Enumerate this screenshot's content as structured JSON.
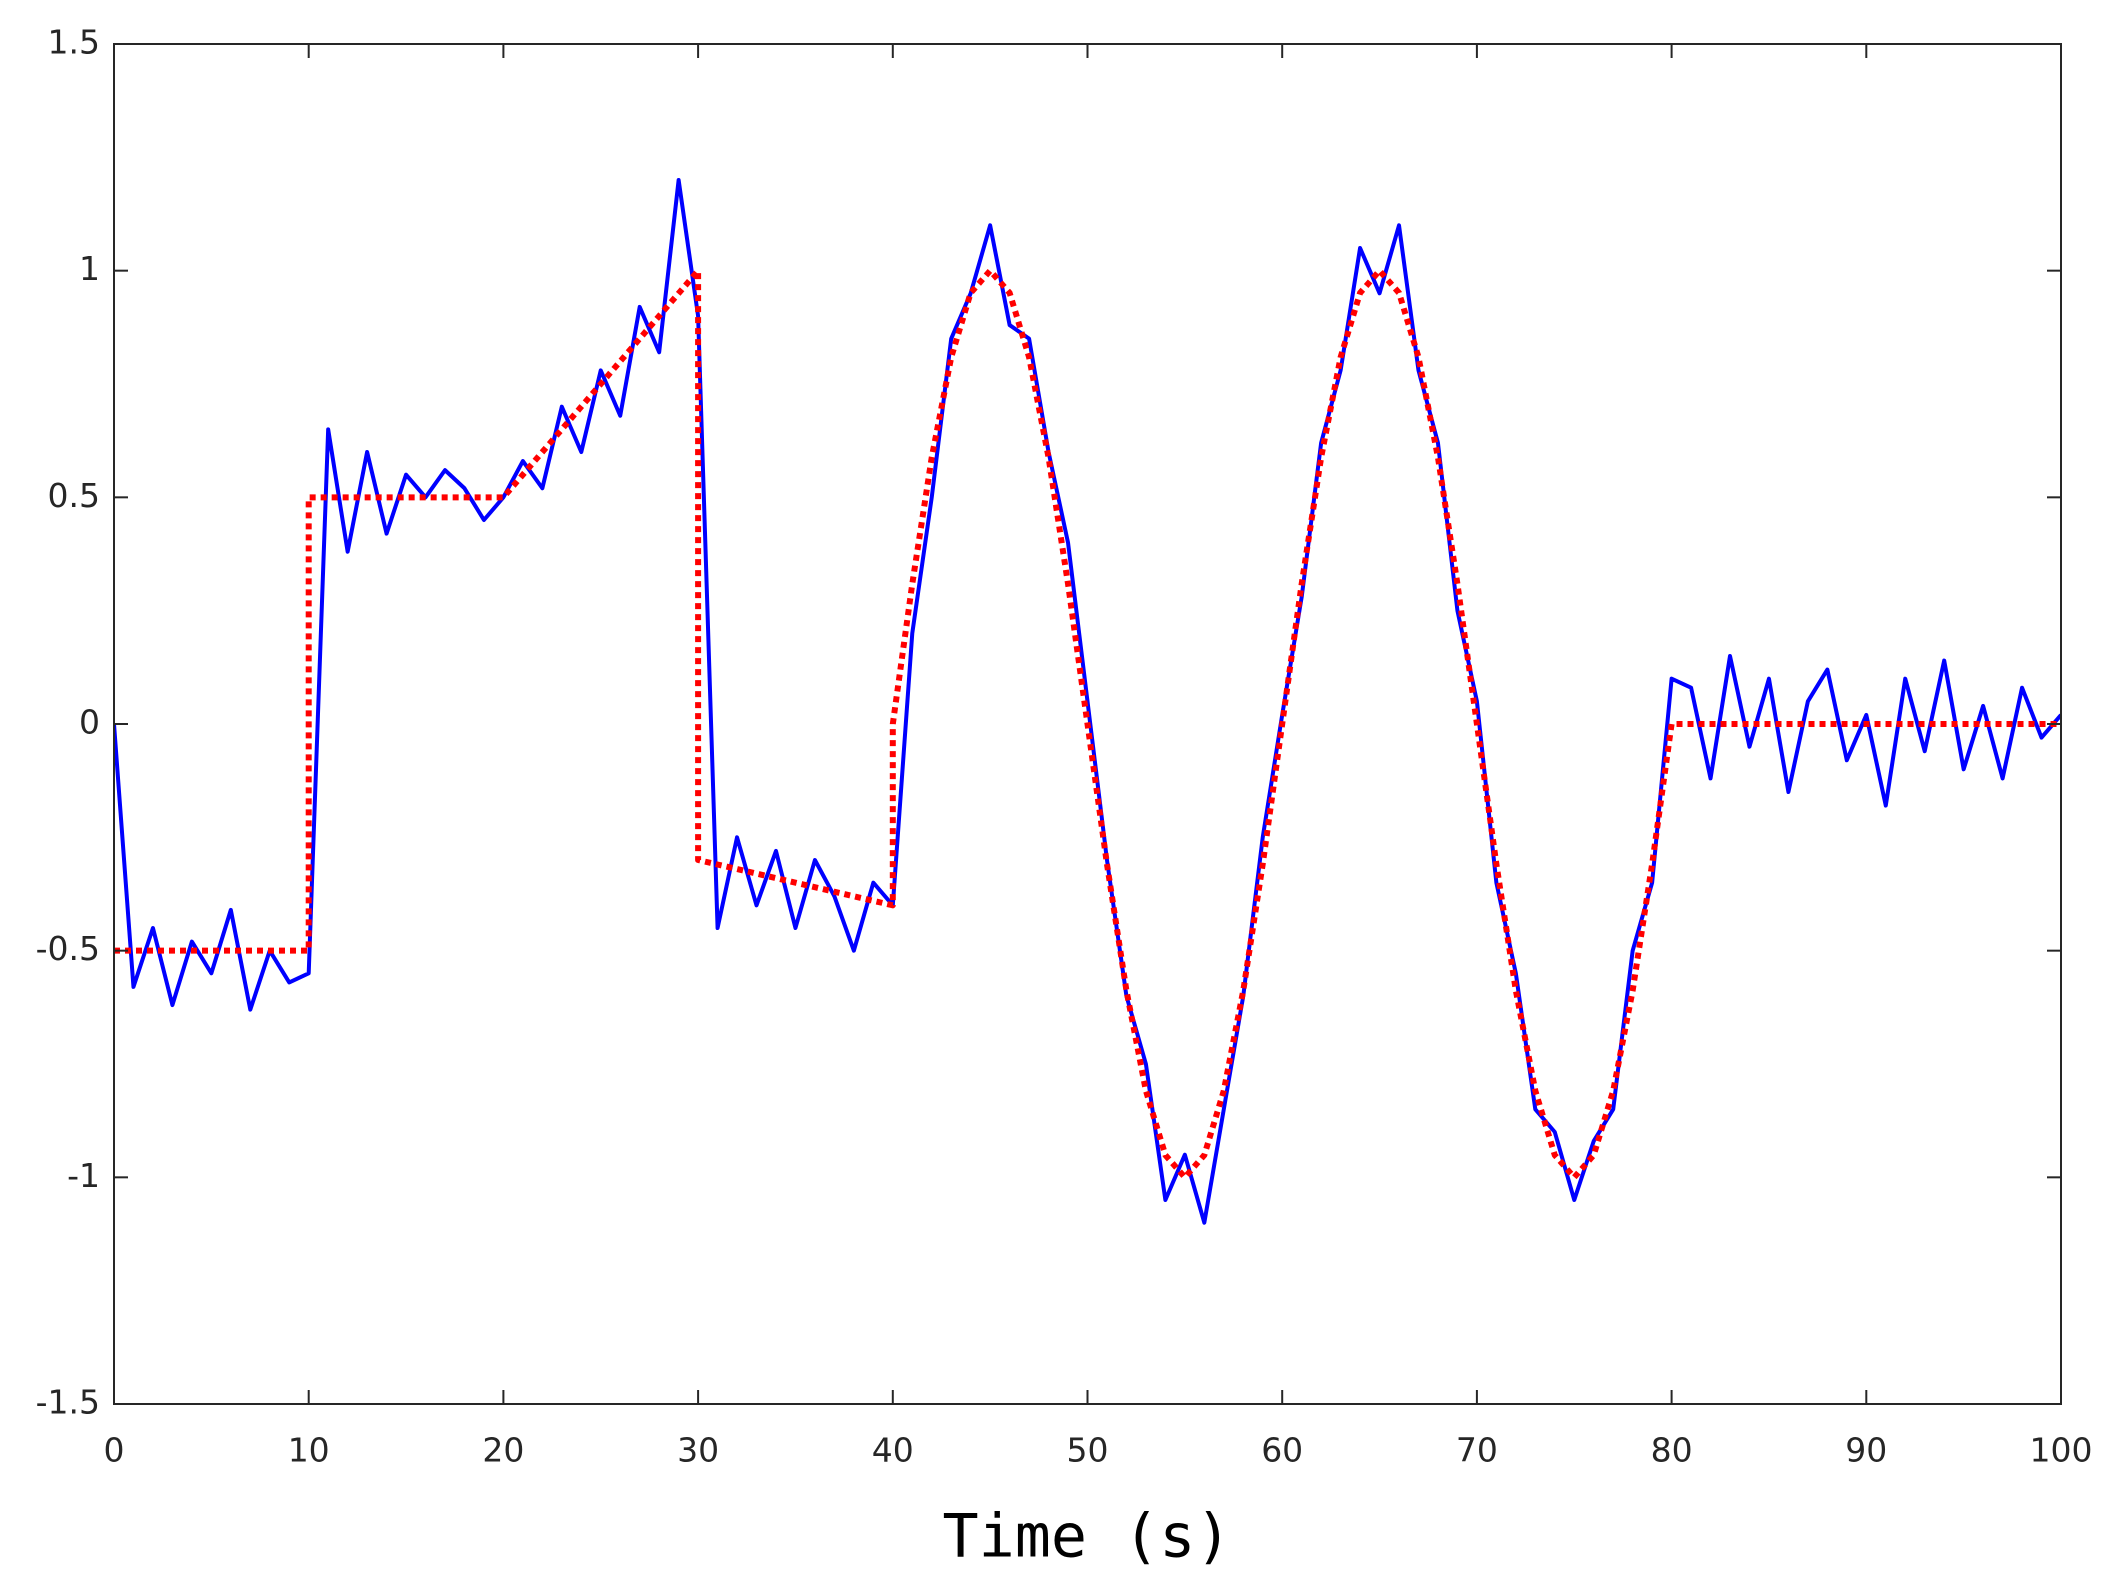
{
  "chart_data": {
    "type": "line",
    "xlabel": "Time (s)",
    "xlim": [
      0,
      100
    ],
    "xticks": [
      0,
      10,
      20,
      30,
      40,
      50,
      60,
      70,
      80,
      90,
      100
    ],
    "ylim": [
      -1.5,
      1.5
    ],
    "yticks": [
      -1.5,
      -1,
      -0.5,
      0,
      0.5,
      1,
      1.5
    ],
    "series": [
      {
        "color": "#0000ff",
        "style": "solid",
        "x": [
          0,
          1,
          2,
          3,
          4,
          5,
          6,
          7,
          8,
          9,
          10,
          11,
          12,
          13,
          14,
          15,
          16,
          17,
          18,
          19,
          20,
          21,
          22,
          23,
          24,
          25,
          26,
          27,
          28,
          29,
          30,
          31,
          32,
          33,
          34,
          35,
          36,
          37,
          38,
          39,
          40,
          41,
          42,
          43,
          44,
          45,
          46,
          47,
          48,
          49,
          50,
          51,
          52,
          53,
          54,
          55,
          56,
          57,
          58,
          59,
          60,
          61,
          62,
          63,
          64,
          65,
          66,
          67,
          68,
          69,
          70,
          71,
          72,
          73,
          74,
          75,
          76,
          77,
          78,
          79,
          80,
          81,
          82,
          83,
          84,
          85,
          86,
          87,
          88,
          89,
          90,
          91,
          92,
          93,
          94,
          95,
          96,
          97,
          98,
          99,
          100
        ],
        "values": [
          0,
          -0.58,
          -0.45,
          -0.62,
          -0.48,
          -0.55,
          -0.41,
          -0.63,
          -0.5,
          -0.57,
          -0.55,
          0.65,
          0.38,
          0.6,
          0.42,
          0.55,
          0.5,
          0.56,
          0.52,
          0.45,
          0.5,
          0.58,
          0.52,
          0.7,
          0.6,
          0.78,
          0.68,
          0.92,
          0.82,
          1.2,
          0.9,
          -0.45,
          -0.25,
          -0.4,
          -0.28,
          -0.45,
          -0.3,
          -0.38,
          -0.5,
          -0.35,
          -0.4,
          0.2,
          0.5,
          0.85,
          0.95,
          1.1,
          0.88,
          0.85,
          0.6,
          0.4,
          0.05,
          -0.3,
          -0.6,
          -0.75,
          -1.05,
          -0.95,
          -1.1,
          -0.85,
          -0.6,
          -0.25,
          0.02,
          0.28,
          0.62,
          0.78,
          1.05,
          0.95,
          1.1,
          0.78,
          0.62,
          0.25,
          0.05,
          -0.35,
          -0.55,
          -0.85,
          -0.9,
          -1.05,
          -0.92,
          -0.85,
          -0.5,
          -0.35,
          0.1,
          0.08,
          -0.12,
          0.15,
          -0.05,
          0.1,
          -0.15,
          0.05,
          0.12,
          -0.08,
          0.02,
          -0.18,
          0.1,
          -0.06,
          0.14,
          -0.1,
          0.04,
          -0.12,
          0.08,
          -0.03,
          0.02
        ]
      },
      {
        "color": "#ff0000",
        "style": "dotted",
        "x": [
          0,
          10,
          10,
          20,
          30,
          30,
          40,
          40,
          41,
          42,
          43,
          44,
          45,
          46,
          47,
          48,
          49,
          50,
          51,
          52,
          53,
          54,
          55,
          56,
          57,
          58,
          59,
          60,
          61,
          62,
          63,
          64,
          65,
          66,
          67,
          68,
          69,
          70,
          71,
          72,
          73,
          74,
          75,
          76,
          77,
          78,
          79,
          80,
          100
        ],
        "values": [
          -0.5,
          -0.5,
          0.5,
          0.5,
          1,
          -0.3,
          -0.4,
          0,
          0.309,
          0.588,
          0.809,
          0.951,
          1,
          0.951,
          0.809,
          0.588,
          0.309,
          0,
          -0.309,
          -0.588,
          -0.809,
          -0.951,
          -1,
          -0.951,
          -0.809,
          -0.588,
          -0.309,
          0,
          0.309,
          0.588,
          0.809,
          0.951,
          1,
          0.951,
          0.809,
          0.588,
          0.309,
          0,
          -0.309,
          -0.588,
          -0.809,
          -0.951,
          -1,
          -0.951,
          -0.809,
          -0.588,
          -0.309,
          0,
          0
        ]
      }
    ]
  }
}
